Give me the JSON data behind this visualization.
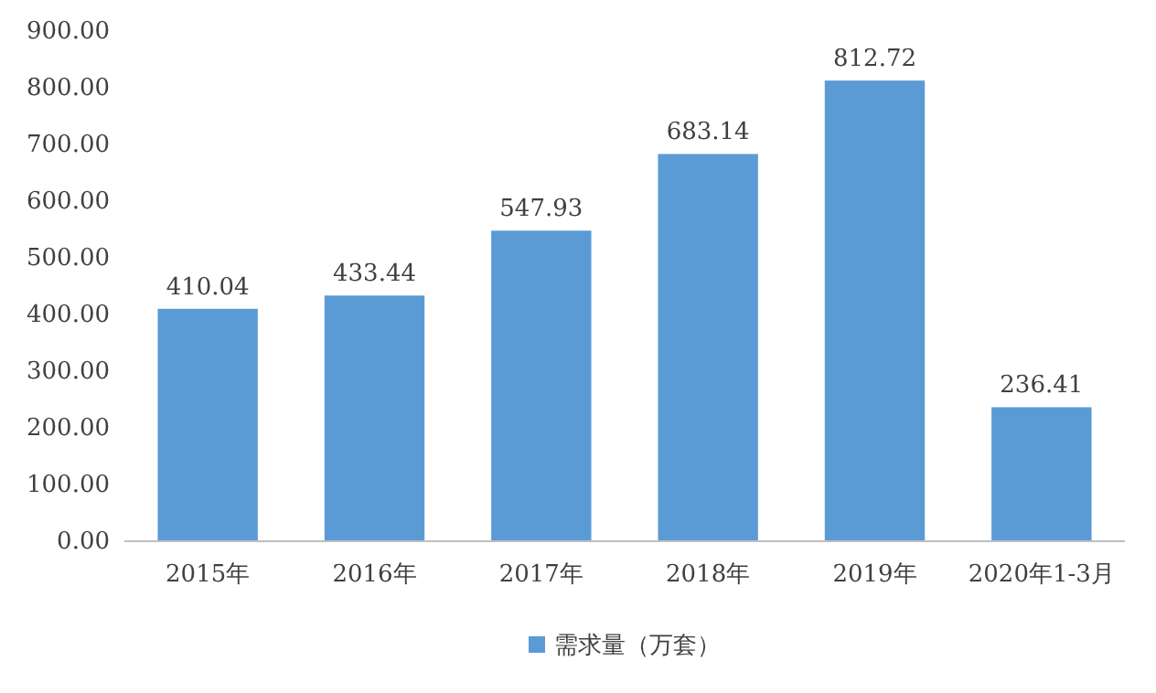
{
  "chart_data": {
    "type": "bar",
    "categories": [
      "2015年",
      "2016年",
      "2017年",
      "2018年",
      "2019年",
      "2020年1-3月"
    ],
    "series": [
      {
        "name": "需求量（万套）",
        "color": "#5b9bd5",
        "values": [
          410.04,
          433.44,
          547.93,
          683.14,
          812.72,
          236.41
        ]
      }
    ],
    "ylim": [
      0,
      900
    ],
    "yticks": [
      {
        "value": 0,
        "label": "0.00"
      },
      {
        "value": 100,
        "label": "100.00"
      },
      {
        "value": 200,
        "label": "200.00"
      },
      {
        "value": 300,
        "label": "300.00"
      },
      {
        "value": 400,
        "label": "400.00"
      },
      {
        "value": 500,
        "label": "500.00"
      },
      {
        "value": 600,
        "label": "600.00"
      },
      {
        "value": 700,
        "label": "700.00"
      },
      {
        "value": 800,
        "label": "800.00"
      },
      {
        "value": 900,
        "label": "900.00"
      }
    ],
    "grid": false,
    "legend": "bottom",
    "data_labels": true
  }
}
